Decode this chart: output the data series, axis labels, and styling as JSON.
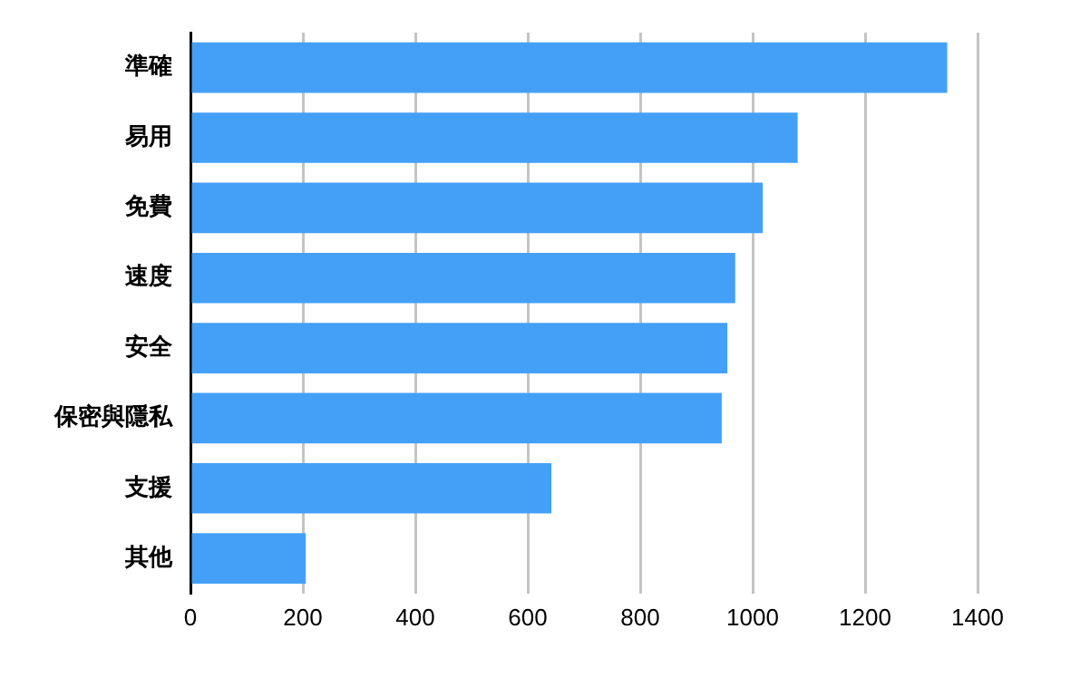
{
  "chart_data": {
    "type": "bar",
    "orientation": "horizontal",
    "categories": [
      "準確",
      "易用",
      "免費",
      "速度",
      "安全",
      "保密與隱私",
      "支援",
      "其他"
    ],
    "values": [
      1346,
      1080,
      1018,
      969,
      955,
      945,
      642,
      205
    ],
    "color": "#44a0f6",
    "xlim": [
      0,
      1400
    ],
    "xticks": [
      0,
      200,
      400,
      600,
      800,
      1000,
      1200,
      1400
    ],
    "grid": "x",
    "legend": false
  }
}
